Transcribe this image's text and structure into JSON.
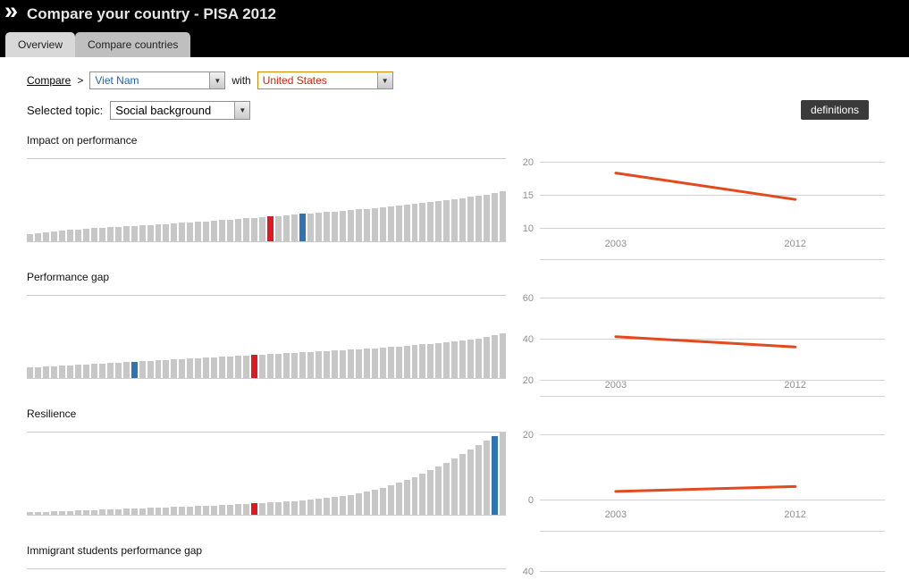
{
  "header": {
    "logo": "»",
    "title": "Compare your country - PISA 2012"
  },
  "tabs": [
    {
      "label": "Overview",
      "active": true
    },
    {
      "label": "Compare countries",
      "active": false
    }
  ],
  "controls": {
    "compare_label": "Compare",
    "separator": ">",
    "country1": "Viet Nam",
    "with_label": "with",
    "country2": "United States",
    "topic_label": "Selected topic:",
    "topic_value": "Social background",
    "definitions_label": "definitions"
  },
  "icons": {
    "dropdown_arrow": "▼"
  },
  "colors": {
    "bar": "#c7c7c7",
    "viet_nam_blue": "#2e74b5",
    "united_states_red": "#e01822",
    "trend_line": "#e2491d"
  },
  "chart_data": [
    {
      "type": "bar",
      "title": "Impact on performance",
      "values": [
        8,
        9,
        10,
        11,
        12,
        13,
        13,
        14,
        15,
        15,
        16,
        16,
        17,
        17,
        18,
        18,
        19,
        19,
        20,
        21,
        21,
        22,
        22,
        23,
        24,
        24,
        25,
        26,
        26,
        27,
        28,
        28,
        29,
        30,
        31,
        31,
        32,
        33,
        33,
        34,
        35,
        36,
        36,
        37,
        38,
        39,
        40,
        41,
        42,
        43,
        44,
        45,
        46,
        47,
        48,
        50,
        51,
        52,
        54,
        56
      ],
      "highlights": {
        "united_states_index": 30,
        "viet_nam_index": 34
      },
      "trend": {
        "type": "line",
        "x": [
          "2003",
          "2012"
        ],
        "values": [
          18.3,
          14.3
        ],
        "yticks": [
          20,
          15,
          10
        ]
      }
    },
    {
      "type": "bar",
      "title": "Performance gap",
      "values": [
        12,
        12,
        13,
        13,
        14,
        14,
        15,
        15,
        16,
        16,
        17,
        17,
        18,
        18,
        19,
        19,
        20,
        20,
        21,
        21,
        22,
        22,
        23,
        23,
        24,
        24,
        25,
        25,
        26,
        26,
        27,
        27,
        28,
        28,
        29,
        29,
        30,
        30,
        31,
        31,
        32,
        32,
        33,
        33,
        34,
        35,
        35,
        36,
        37,
        38,
        38,
        39,
        40,
        41,
        42,
        43,
        44,
        46,
        48,
        50
      ],
      "highlights": {
        "viet_nam_index": 13,
        "united_states_index": 28
      },
      "trend": {
        "type": "line",
        "x": [
          "2003",
          "2012"
        ],
        "values": [
          41,
          36
        ],
        "yticks": [
          60,
          40,
          20
        ]
      }
    },
    {
      "type": "bar",
      "title": "Resilience",
      "values": [
        3,
        3,
        3,
        4,
        4,
        4,
        5,
        5,
        5,
        6,
        6,
        6,
        7,
        7,
        7,
        8,
        8,
        8,
        9,
        9,
        9,
        10,
        10,
        10,
        11,
        11,
        12,
        12,
        13,
        13,
        14,
        14,
        15,
        15,
        16,
        17,
        18,
        19,
        20,
        21,
        22,
        24,
        26,
        28,
        30,
        33,
        36,
        39,
        42,
        46,
        50,
        54,
        58,
        63,
        68,
        73,
        78,
        83,
        88,
        92
      ],
      "highlights": {
        "united_states_index": 28,
        "viet_nam_index": 58
      },
      "trend": {
        "type": "line",
        "x": [
          "2003",
          "2012"
        ],
        "values": [
          2.5,
          4
        ],
        "yticks": [
          20,
          0
        ]
      }
    },
    {
      "type": "bar",
      "title": "Immigrant students performance gap",
      "values": [],
      "highlights": {},
      "trend": {
        "type": "line",
        "x": [],
        "values": [],
        "yticks": [
          40
        ]
      }
    }
  ]
}
